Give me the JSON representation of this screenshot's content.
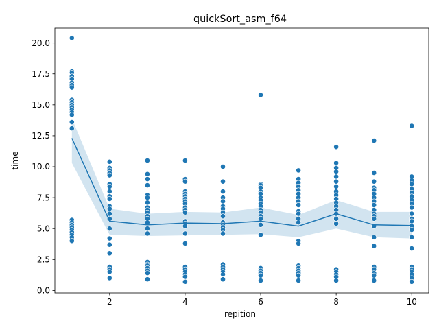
{
  "chart_data": {
    "type": "scatter",
    "title": "quickSort_asm_f64",
    "xlabel": "repition",
    "ylabel": "time",
    "xlim": [
      0.55,
      10.45
    ],
    "ylim": [
      -0.2,
      21.2
    ],
    "xticks": [
      2,
      4,
      6,
      8,
      10
    ],
    "xtick_labels": [
      "2",
      "4",
      "6",
      "8",
      "10"
    ],
    "yticks": [
      0.0,
      2.5,
      5.0,
      7.5,
      10.0,
      12.5,
      15.0,
      17.5,
      20.0
    ],
    "ytick_labels": [
      "0.0",
      "2.5",
      "5.0",
      "7.5",
      "10.0",
      "12.5",
      "15.0",
      "17.5",
      "20.0"
    ],
    "grid": false,
    "colors": {
      "points": "#1f77b4",
      "line": "#1f77b4",
      "band": "#1f77b4",
      "point_edge": "#ffffff"
    },
    "points": [
      {
        "x": 1,
        "values": [
          20.4,
          17.7,
          17.6,
          17.3,
          17.1,
          16.8,
          16.6,
          16.4,
          15.4,
          15.2,
          15.0,
          14.8,
          14.6,
          14.4,
          14.2,
          13.6,
          13.1,
          5.7,
          5.5,
          5.3,
          5.1,
          4.9,
          4.7,
          4.5,
          4.3,
          4.0
        ]
      },
      {
        "x": 2,
        "values": [
          10.4,
          9.9,
          9.7,
          9.5,
          9.3,
          8.6,
          8.4,
          8.0,
          7.6,
          7.4,
          6.8,
          6.6,
          6.2,
          5.8,
          5.0,
          4.2,
          3.7,
          3.0,
          1.9,
          1.7,
          1.5,
          1.0
        ]
      },
      {
        "x": 3,
        "values": [
          10.5,
          9.4,
          9.0,
          8.5,
          7.7,
          7.5,
          7.1,
          6.7,
          6.5,
          6.3,
          6.0,
          5.8,
          5.5,
          5.0,
          4.6,
          2.3,
          2.1,
          2.0,
          1.8,
          1.6,
          1.4,
          0.9
        ]
      },
      {
        "x": 4,
        "values": [
          10.5,
          9.0,
          8.8,
          8.0,
          7.8,
          7.6,
          7.4,
          7.2,
          7.0,
          6.7,
          6.5,
          6.3,
          5.6,
          5.4,
          5.2,
          4.6,
          3.8,
          1.9,
          1.7,
          1.5,
          1.3,
          1.1,
          0.7
        ]
      },
      {
        "x": 5,
        "values": [
          10.0,
          8.8,
          8.0,
          7.5,
          7.2,
          6.8,
          6.6,
          6.3,
          6.0,
          5.5,
          5.3,
          5.1,
          4.9,
          4.6,
          2.1,
          1.9,
          1.7,
          1.5,
          1.3,
          0.9
        ]
      },
      {
        "x": 6,
        "values": [
          15.8,
          8.6,
          8.5,
          8.3,
          8.0,
          7.8,
          7.5,
          7.3,
          7.0,
          6.8,
          6.5,
          6.3,
          6.0,
          5.8,
          5.3,
          4.5,
          1.8,
          1.6,
          1.4,
          1.2,
          0.8
        ]
      },
      {
        "x": 7,
        "values": [
          9.7,
          9.0,
          8.7,
          8.4,
          8.1,
          7.8,
          7.5,
          7.2,
          6.9,
          6.4,
          6.2,
          5.8,
          5.5,
          4.0,
          3.8,
          2.0,
          1.8,
          1.6,
          1.4,
          1.2,
          0.8
        ]
      },
      {
        "x": 8,
        "values": [
          11.6,
          10.3,
          9.9,
          9.6,
          9.2,
          8.8,
          8.4,
          8.0,
          7.7,
          7.4,
          7.1,
          6.8,
          6.5,
          6.2,
          5.8,
          5.4,
          1.7,
          1.5,
          1.3,
          1.1,
          0.8
        ]
      },
      {
        "x": 9,
        "values": [
          12.1,
          9.5,
          8.8,
          8.3,
          8.1,
          7.8,
          7.5,
          7.2,
          6.9,
          6.5,
          6.2,
          6.0,
          5.8,
          5.2,
          4.3,
          3.6,
          1.9,
          1.7,
          1.4,
          1.2,
          0.8
        ]
      },
      {
        "x": 10,
        "values": [
          13.3,
          9.2,
          8.9,
          8.6,
          8.2,
          7.9,
          7.6,
          7.3,
          7.0,
          6.7,
          6.2,
          5.8,
          5.6,
          5.2,
          4.9,
          4.3,
          3.4,
          1.9,
          1.7,
          1.5,
          1.3,
          1.0,
          0.7
        ]
      }
    ],
    "mean_line": {
      "x": [
        1,
        2,
        3,
        4,
        5,
        6,
        7,
        8,
        9,
        10
      ],
      "y": [
        12.3,
        5.6,
        5.3,
        5.45,
        5.4,
        5.6,
        5.2,
        6.2,
        5.3,
        5.25
      ]
    },
    "ci_band": {
      "x": [
        1,
        2,
        3,
        4,
        5,
        6,
        7,
        8,
        9,
        10
      ],
      "lower": [
        10.3,
        4.5,
        4.4,
        4.45,
        4.5,
        4.55,
        4.3,
        5.0,
        4.3,
        4.2
      ],
      "upper": [
        13.9,
        6.6,
        6.2,
        6.35,
        6.3,
        6.7,
        6.1,
        7.3,
        6.35,
        6.35
      ]
    }
  }
}
